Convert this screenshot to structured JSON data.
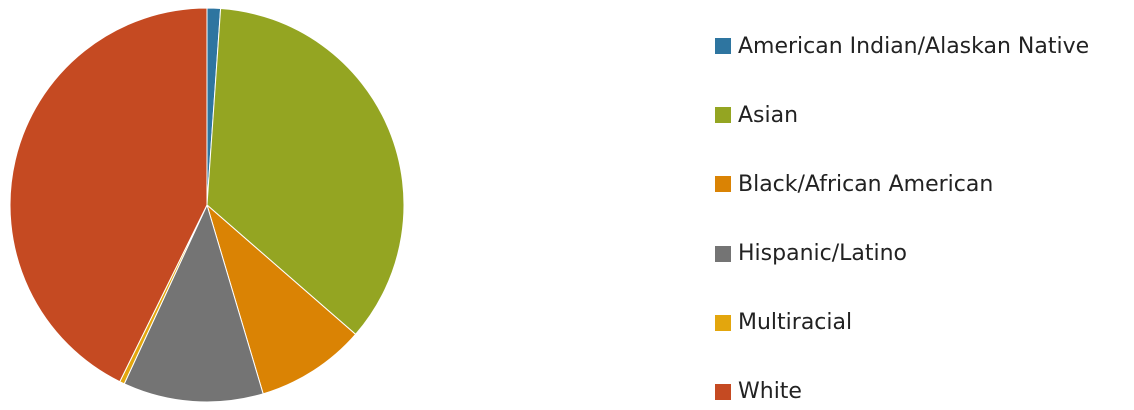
{
  "chart_data": {
    "type": "pie",
    "title": "",
    "categories": [
      "American Indian/Alaskan Native",
      "Asian",
      "Black/African American",
      "Hispanic/Latino",
      "Multiracial",
      "White"
    ],
    "values": [
      1.1,
      35.3,
      9.0,
      11.5,
      0.4,
      42.7
    ],
    "colors": [
      "#2e75a0",
      "#94a522",
      "#da8304",
      "#747474",
      "#e3a60d",
      "#c54a22"
    ],
    "legend_position": "right",
    "start_angle": "top (12 o'clock), clockwise"
  }
}
